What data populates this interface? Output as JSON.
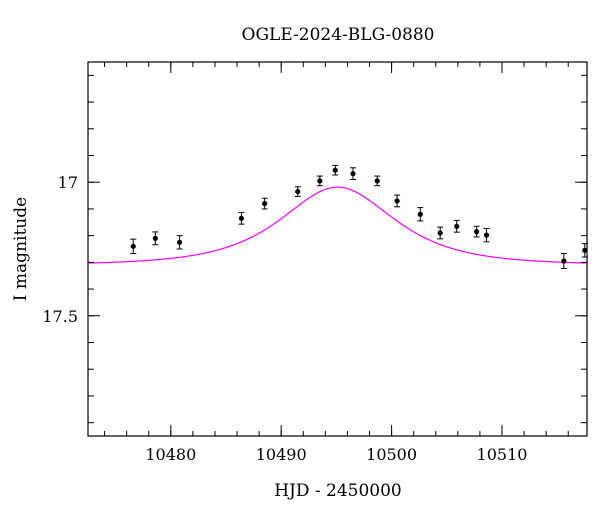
{
  "chart_data": {
    "type": "scatter",
    "title": "OGLE-2024-BLG-0880",
    "xlabel": "HJD - 2450000",
    "ylabel": "I magnitude",
    "xlim": [
      10472.5,
      10517.7
    ],
    "ylim": [
      17.95,
      16.55
    ],
    "y_inverted": true,
    "x_major_ticks": [
      10480,
      10490,
      10500,
      10510
    ],
    "x_tick_labels": [
      "10480",
      "10490",
      "10500",
      "10510"
    ],
    "x_minor_step": 2,
    "y_major_ticks": [
      17.0,
      17.5
    ],
    "y_tick_labels": [
      "17",
      "17.5"
    ],
    "y_minor_step": 0.1,
    "grid": false,
    "colors": {
      "points": "#000000",
      "errorbars": "#000000",
      "model": "#ff00ff"
    },
    "series": [
      {
        "type": "scatter",
        "points": [
          {
            "x": 10476.6,
            "y": 17.24,
            "err": 0.027
          },
          {
            "x": 10478.6,
            "y": 17.21,
            "err": 0.024
          },
          {
            "x": 10480.8,
            "y": 17.225,
            "err": 0.025
          },
          {
            "x": 10486.4,
            "y": 17.135,
            "err": 0.022
          },
          {
            "x": 10488.5,
            "y": 17.08,
            "err": 0.02
          },
          {
            "x": 10491.5,
            "y": 17.035,
            "err": 0.018
          },
          {
            "x": 10493.5,
            "y": 16.995,
            "err": 0.018
          },
          {
            "x": 10494.9,
            "y": 16.955,
            "err": 0.018
          },
          {
            "x": 10496.5,
            "y": 16.968,
            "err": 0.022
          },
          {
            "x": 10498.7,
            "y": 16.995,
            "err": 0.018
          },
          {
            "x": 10500.5,
            "y": 17.07,
            "err": 0.022
          },
          {
            "x": 10502.6,
            "y": 17.12,
            "err": 0.025
          },
          {
            "x": 10504.4,
            "y": 17.19,
            "err": 0.022
          },
          {
            "x": 10505.9,
            "y": 17.165,
            "err": 0.022
          },
          {
            "x": 10507.7,
            "y": 17.185,
            "err": 0.02
          },
          {
            "x": 10508.6,
            "y": 17.198,
            "err": 0.025
          },
          {
            "x": 10515.6,
            "y": 17.295,
            "err": 0.028
          },
          {
            "x": 10517.5,
            "y": 17.255,
            "err": 0.025
          }
        ]
      },
      {
        "type": "line",
        "model": "PSPL",
        "t0": 10495.1,
        "u0": 1.05,
        "tE": 6.0,
        "baseline": 17.31
      }
    ]
  }
}
